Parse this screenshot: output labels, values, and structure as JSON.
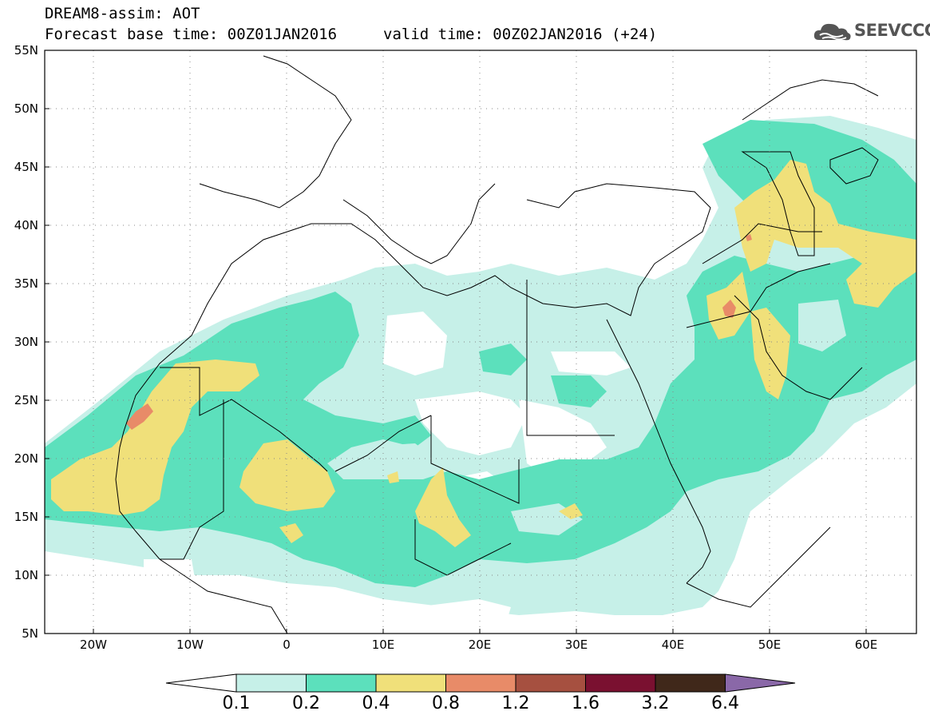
{
  "header": {
    "model_title": "DREAM8-assim: AOT",
    "base_time": "Forecast base time: 00Z01JAN2016",
    "valid_time": "valid time: 00Z02JAN2016 (+24)"
  },
  "logo": {
    "text": "SEEVCCC",
    "icon": "cloud-icon"
  },
  "map": {
    "extent": {
      "lon": [
        -25,
        65
      ],
      "lat": [
        5,
        55
      ]
    },
    "lat_labels": [
      "55N",
      "50N",
      "45N",
      "40N",
      "35N",
      "30N",
      "25N",
      "20N",
      "15N",
      "10N",
      "5N"
    ],
    "lon_labels": [
      "20W",
      "10W",
      "0",
      "10E",
      "20E",
      "30E",
      "40E",
      "50E",
      "60E"
    ],
    "grid": "dotted",
    "colors": {
      "level_0_1": "#c6f0e8",
      "level_0_2": "#5ce0bc",
      "level_0_4": "#f0e07a",
      "level_0_8": "#e88b68",
      "level_1_2": "#a65040",
      "level_1_6": "#7a1030",
      "level_3_2": "#40281a",
      "level_6_4": "#8a68a8"
    }
  },
  "colorbar": {
    "labels": [
      "0.1",
      "0.2",
      "0.4",
      "0.8",
      "1.2",
      "1.6",
      "3.2",
      "6.4"
    ],
    "colors": [
      "#c6f0e8",
      "#5ce0bc",
      "#f0e07a",
      "#e88b68",
      "#a65040",
      "#7a1030",
      "#40281a"
    ],
    "over_color": "#8a68a8",
    "under_color": "#ffffff"
  }
}
